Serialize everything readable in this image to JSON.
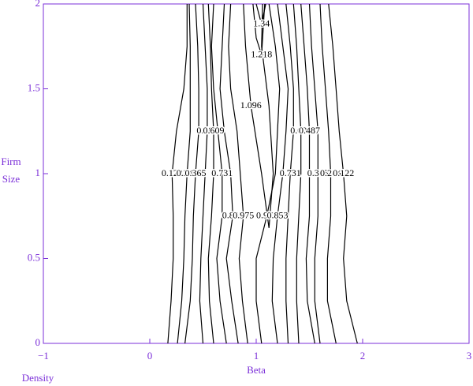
{
  "chart_data": {
    "type": "contour",
    "x_label": "Beta",
    "y_label": [
      "Firm",
      "Size"
    ],
    "annotation": "Density",
    "xlim": [
      -1,
      3
    ],
    "ylim": [
      0,
      2
    ],
    "xticks": [
      {
        "value": -1,
        "label": "−1"
      },
      0,
      1,
      2,
      3
    ],
    "yticks": [
      0,
      0.5,
      1,
      1.5,
      2
    ],
    "axis_color": "#7b2fd8",
    "line_color": "#000000",
    "contours": [
      {
        "level": 0.122,
        "x": [
          0.17,
          0.2,
          0.22,
          0.22,
          0.21,
          0.25,
          0.32,
          0.35,
          0.35
        ],
        "y": [
          0,
          0.25,
          0.5,
          0.75,
          1,
          1.25,
          1.5,
          1.75,
          2
        ]
      },
      {
        "level": 0.244,
        "x": [
          0.26,
          0.3,
          0.32,
          0.33,
          0.35,
          0.38,
          0.38,
          0.38,
          0.37
        ],
        "y": [
          0,
          0.25,
          0.5,
          0.75,
          1,
          1.25,
          1.5,
          1.75,
          2
        ]
      },
      {
        "level": 0.365,
        "x": [
          0.33,
          0.38,
          0.4,
          0.41,
          0.43,
          0.46,
          0.46,
          0.45,
          0.43
        ],
        "y": [
          0,
          0.25,
          0.5,
          0.75,
          1,
          1.25,
          1.5,
          1.75,
          2
        ]
      },
      {
        "level": 0.487,
        "x": [
          0.5,
          0.47,
          0.48,
          0.5,
          0.52,
          0.54,
          0.54,
          0.52,
          0.5
        ],
        "y": [
          0,
          0.25,
          0.5,
          0.75,
          1,
          1.25,
          1.5,
          1.75,
          2
        ]
      },
      {
        "level": 0.609,
        "x": [
          0.6,
          0.56,
          0.55,
          0.58,
          0.6,
          0.6,
          0.58,
          0.57,
          0.55
        ],
        "y": [
          0,
          0.25,
          0.5,
          0.75,
          1,
          1.25,
          1.5,
          1.75,
          2
        ]
      },
      {
        "level": 0.731,
        "x": [
          0.72,
          0.66,
          0.63,
          0.68,
          0.68,
          0.64,
          0.6,
          0.58,
          0.6
        ],
        "y": [
          0,
          0.25,
          0.5,
          0.75,
          1,
          1.25,
          1.5,
          1.75,
          2
        ]
      },
      {
        "level": 0.853,
        "x": [
          0.83,
          0.77,
          0.72,
          0.78,
          0.76,
          0.7,
          0.66,
          0.68,
          0.7
        ],
        "y": [
          0,
          0.25,
          0.5,
          0.75,
          1,
          1.25,
          1.5,
          1.75,
          2
        ]
      },
      {
        "level": 0.975,
        "x": [
          0.92,
          0.87,
          0.84,
          0.88,
          0.85,
          0.82,
          0.76,
          0.74,
          0.76
        ],
        "y": [
          0,
          0.25,
          0.5,
          0.75,
          1,
          1.25,
          1.5,
          1.75,
          2
        ]
      },
      {
        "level": 1.096,
        "x": [
          0.88,
          0.9,
          0.95,
          1.05,
          1.12,
          1.16,
          1.12,
          1.05,
          1.06
        ],
        "y": [
          2,
          1.75,
          1.4,
          1.0,
          0.68,
          1.0,
          1.4,
          1.75,
          2
        ]
      },
      {
        "level": 1.218,
        "x": [
          0.97,
          1.0,
          1.05,
          1.08
        ],
        "y": [
          2,
          1.8,
          1.7,
          2
        ]
      },
      {
        "level": 1.34,
        "x": [
          1.0,
          1.05,
          1.09
        ],
        "y": [
          2,
          1.88,
          2
        ]
      },
      {
        "level": 0.975,
        "x": [
          1.05,
          1.0,
          1.0,
          1.1,
          1.18,
          1.2,
          1.22,
          1.18,
          1.12
        ],
        "y": [
          0,
          0.25,
          0.5,
          0.75,
          1,
          1.25,
          1.5,
          1.75,
          2
        ]
      },
      {
        "level": 0.853,
        "x": [
          1.2,
          1.15,
          1.16,
          1.2,
          1.25,
          1.28,
          1.3,
          1.25,
          1.2
        ],
        "y": [
          0,
          0.25,
          0.5,
          0.75,
          1,
          1.25,
          1.5,
          1.75,
          2
        ]
      },
      {
        "level": 0.731,
        "x": [
          1.3,
          1.28,
          1.28,
          1.3,
          1.32,
          1.35,
          1.35,
          1.32,
          1.28
        ],
        "y": [
          0,
          0.25,
          0.5,
          0.75,
          1,
          1.25,
          1.5,
          1.75,
          2
        ]
      },
      {
        "level": 0.609,
        "x": [
          1.4,
          1.38,
          1.38,
          1.4,
          1.42,
          1.42,
          1.4,
          1.38,
          1.35
        ],
        "y": [
          0,
          0.25,
          0.5,
          0.75,
          1,
          1.25,
          1.5,
          1.75,
          2
        ]
      },
      {
        "level": 0.487,
        "x": [
          1.55,
          1.48,
          1.47,
          1.5,
          1.5,
          1.5,
          1.48,
          1.45,
          1.42
        ],
        "y": [
          0,
          0.25,
          0.5,
          0.75,
          1,
          1.25,
          1.5,
          1.75,
          2
        ]
      },
      {
        "level": 0.365,
        "x": [
          1.6,
          1.55,
          1.55,
          1.58,
          1.58,
          1.58,
          1.55,
          1.52,
          1.5
        ],
        "y": [
          0,
          0.25,
          0.5,
          0.75,
          1,
          1.25,
          1.5,
          1.75,
          2
        ]
      },
      {
        "level": 0.244,
        "x": [
          1.75,
          1.67,
          1.67,
          1.7,
          1.7,
          1.68,
          1.65,
          1.62,
          1.6
        ],
        "y": [
          0,
          0.25,
          0.5,
          0.75,
          1,
          1.25,
          1.5,
          1.75,
          2
        ]
      },
      {
        "level": 0.122,
        "x": [
          1.95,
          1.85,
          1.82,
          1.85,
          1.82,
          1.78,
          1.75,
          1.72,
          1.68
        ],
        "y": [
          0,
          0.25,
          0.5,
          0.75,
          1,
          1.25,
          1.5,
          1.75,
          2
        ]
      }
    ]
  }
}
